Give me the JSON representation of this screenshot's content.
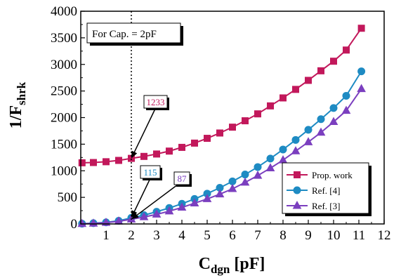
{
  "chart_data": {
    "type": "line",
    "xlabel": "C",
    "xlabel_sub": "dgn",
    "xlabel_unit": " [pF]",
    "ylabel": "1/F",
    "ylabel_sub": "shrk",
    "xlim": [
      0,
      12
    ],
    "ylim": [
      0,
      4000
    ],
    "x_ticks": [
      1,
      2,
      3,
      4,
      5,
      6,
      7,
      8,
      9,
      10,
      11,
      12
    ],
    "y_ticks": [
      0,
      500,
      1000,
      1500,
      2000,
      2500,
      3000,
      3500,
      4000
    ],
    "box_label": "For Cap. = 2pF",
    "marker_line_x": 2,
    "annotations": [
      {
        "text": "1233",
        "color": "#c2185b",
        "x": 2,
        "y": 1233
      },
      {
        "text": "115",
        "color": "#1e8bc3",
        "x": 2,
        "y": 115
      },
      {
        "text": "87",
        "color": "#7b3fbf",
        "x": 2,
        "y": 87
      }
    ],
    "series": [
      {
        "name": "Prop. work",
        "color": "#c2185b",
        "marker": "square",
        "x": [
          0.05,
          0.5,
          1,
          1.5,
          2,
          2.5,
          3,
          3.5,
          4,
          4.5,
          5,
          5.5,
          6,
          6.5,
          7,
          7.5,
          8,
          8.5,
          9,
          9.5,
          10,
          10.5,
          11.1
        ],
        "y": [
          1150,
          1155,
          1170,
          1195,
          1233,
          1270,
          1315,
          1370,
          1440,
          1520,
          1610,
          1710,
          1820,
          1940,
          2070,
          2220,
          2370,
          2530,
          2700,
          2880,
          3060,
          3270,
          3680
        ]
      },
      {
        "name": "Ref. [4]",
        "color": "#1e8bc3",
        "marker": "circle",
        "x": [
          0.05,
          0.5,
          1,
          1.5,
          2,
          2.5,
          3,
          3.5,
          4,
          4.5,
          5,
          5.5,
          6,
          6.5,
          7,
          7.5,
          8,
          8.5,
          9,
          9.5,
          10,
          10.5,
          11.1
        ],
        "y": [
          5,
          15,
          30,
          60,
          115,
          165,
          230,
          300,
          380,
          470,
          570,
          680,
          800,
          930,
          1070,
          1230,
          1400,
          1580,
          1770,
          1970,
          2180,
          2410,
          2870
        ]
      },
      {
        "name": "Ref. [3]",
        "color": "#7b3fbf",
        "marker": "triangle",
        "x": [
          0.05,
          0.5,
          1,
          1.5,
          2,
          2.5,
          3,
          3.5,
          4,
          4.5,
          5,
          5.5,
          6,
          6.5,
          7,
          7.5,
          8,
          8.5,
          9,
          9.5,
          10,
          10.5,
          11.1
        ],
        "y": [
          3,
          10,
          25,
          50,
          87,
          130,
          180,
          240,
          310,
          390,
          470,
          560,
          660,
          780,
          910,
          1050,
          1200,
          1370,
          1540,
          1720,
          1920,
          2130,
          2540
        ]
      }
    ]
  }
}
